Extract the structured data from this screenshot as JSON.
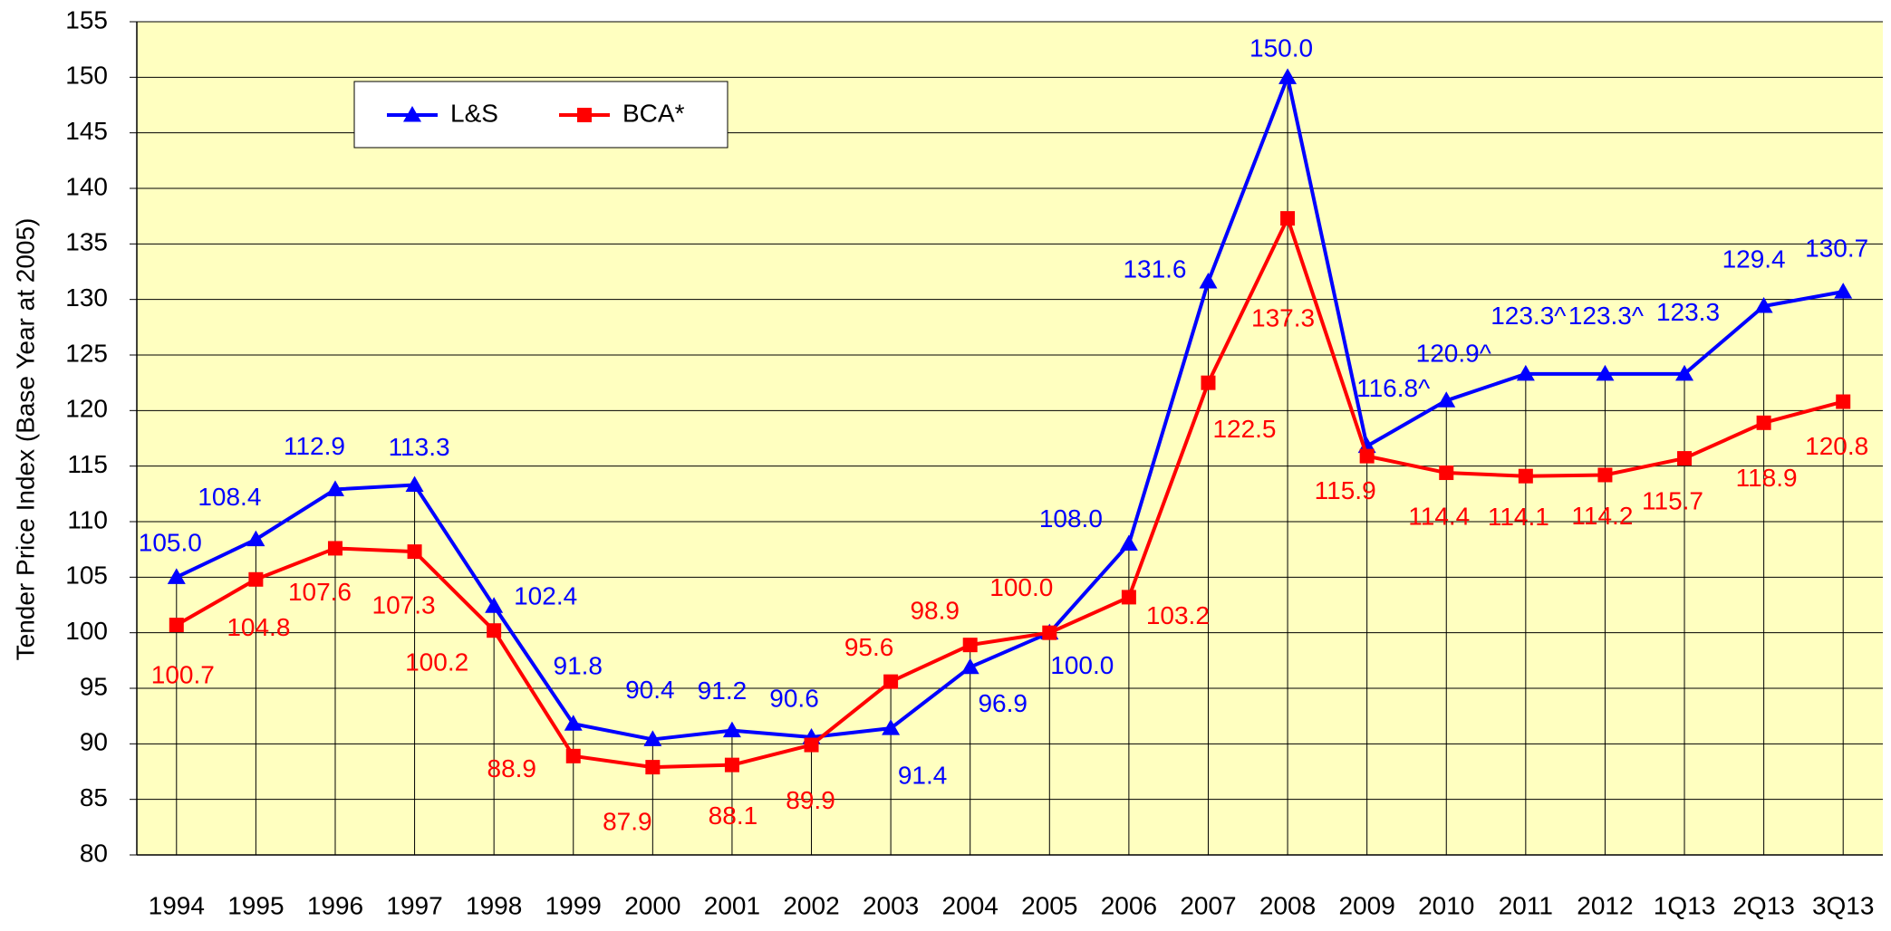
{
  "chart_data": {
    "type": "line",
    "y_label": "Tender Price Index (Base Year at 2005)",
    "categories": [
      "1994",
      "1995",
      "1996",
      "1997",
      "1998",
      "1999",
      "2000",
      "2001",
      "2002",
      "2003",
      "2004",
      "2005",
      "2006",
      "2007",
      "2008",
      "2009",
      "2010",
      "2011",
      "2012",
      "1Q13",
      "2Q13",
      "3Q13"
    ],
    "series": [
      {
        "name": "L&S",
        "color": "#0000ff",
        "marker": "triangle",
        "values": [
          105.0,
          108.4,
          112.9,
          113.3,
          102.4,
          91.8,
          90.4,
          91.2,
          90.6,
          91.4,
          96.9,
          100.0,
          108.0,
          131.6,
          150.0,
          116.8,
          120.9,
          123.3,
          123.3,
          123.3,
          129.4,
          130.7
        ],
        "value_labels": [
          "105.0",
          "108.4",
          "112.9",
          "113.3",
          "102.4",
          "91.8",
          "90.4",
          "91.2",
          "90.6",
          "91.4",
          "96.9",
          "100.0",
          "108.0",
          "131.6",
          "150.0",
          "116.8^",
          "120.9^",
          "123.3^",
          "123.3^",
          "123.3",
          "129.4",
          "130.7"
        ]
      },
      {
        "name": "BCA*",
        "color": "#ff0000",
        "marker": "square",
        "values": [
          100.7,
          104.8,
          107.6,
          107.3,
          100.2,
          88.9,
          87.9,
          88.1,
          89.9,
          95.6,
          98.9,
          100.0,
          103.2,
          122.5,
          137.3,
          115.9,
          114.4,
          114.1,
          114.2,
          115.7,
          118.9,
          120.8
        ],
        "value_labels": [
          "100.7",
          "104.8",
          "107.6",
          "107.3",
          "100.2",
          "88.9",
          "87.9",
          "88.1",
          "89.9",
          "95.6",
          "98.9",
          "100.0",
          "103.2",
          "122.5",
          "137.3",
          "115.9",
          "114.4",
          "114.1",
          "114.2",
          "115.7",
          "118.9",
          "120.8"
        ]
      }
    ],
    "ylim": [
      80,
      155
    ],
    "yticks": [
      80,
      85,
      90,
      95,
      100,
      105,
      110,
      115,
      120,
      125,
      130,
      135,
      140,
      145,
      150,
      155
    ],
    "grid": true,
    "legend": "top-left",
    "background": "#ffffc0"
  }
}
